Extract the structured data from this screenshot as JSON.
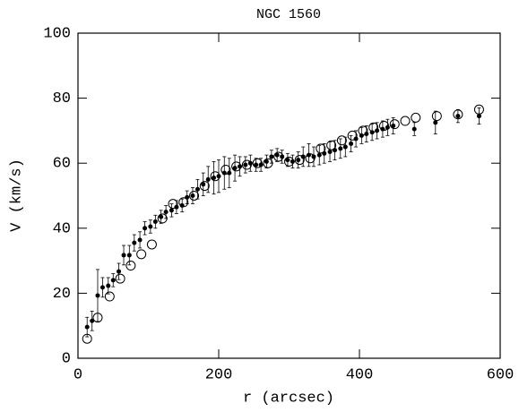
{
  "chart_data": {
    "type": "scatter",
    "title": "NGC 1560",
    "xlabel": "r (arcsec)",
    "ylabel": "V (km/s)",
    "xlim": [
      0,
      600
    ],
    "ylim": [
      0,
      100
    ],
    "xticks": [
      0,
      200,
      400,
      600
    ],
    "yticks": [
      0,
      20,
      40,
      60,
      80,
      100
    ],
    "series": [
      {
        "marker": "filled",
        "color": "#000000",
        "x": [
          13,
          20,
          28,
          35,
          43,
          50,
          58,
          65,
          73,
          80,
          88,
          95,
          103,
          110,
          118,
          125,
          133,
          140,
          148,
          155,
          163,
          170,
          178,
          185,
          193,
          200,
          208,
          215,
          223,
          230,
          238,
          245,
          253,
          260,
          268,
          275,
          283,
          290,
          298,
          305,
          313,
          320,
          328,
          335,
          343,
          350,
          358,
          365,
          373,
          380,
          388,
          395,
          403,
          410,
          418,
          425,
          433,
          440,
          448,
          478,
          508,
          540,
          570
        ],
        "values": [
          9.6,
          11.5,
          19.3,
          21.8,
          22.3,
          24,
          26.7,
          31.7,
          31.7,
          35.5,
          36.4,
          40,
          40.5,
          42,
          43.5,
          45,
          45.5,
          46.5,
          47,
          49.5,
          50,
          52,
          53.5,
          55,
          55.5,
          56,
          57,
          57,
          58.5,
          59,
          59.5,
          60,
          59.5,
          59.5,
          60.5,
          62,
          62.5,
          62,
          61,
          60.5,
          61,
          62,
          62.5,
          62,
          62.5,
          63,
          63.5,
          64,
          64.5,
          65,
          66,
          67.5,
          68.5,
          69,
          69.5,
          70,
          70.5,
          71,
          71.5,
          70.5,
          72.5,
          74.5,
          74.5
        ],
        "errors": [
          3,
          3,
          8,
          3,
          2.5,
          2,
          2.5,
          3,
          3,
          2.5,
          2.5,
          2,
          2,
          2,
          2,
          2,
          2,
          2,
          2,
          2,
          2.5,
          3,
          3.5,
          4,
          5,
          5,
          5,
          4.5,
          4,
          3,
          2.5,
          2.5,
          2,
          2,
          2,
          2,
          2,
          2,
          2,
          2,
          2.5,
          3,
          3.5,
          3,
          3,
          3,
          3,
          3,
          3,
          3,
          2.5,
          2.5,
          2.5,
          2.5,
          2.5,
          2.5,
          2.5,
          2.5,
          2.5,
          2,
          3.5,
          2,
          2.5
        ]
      },
      {
        "marker": "open",
        "color": "#000000",
        "x": [
          13,
          28,
          45,
          60,
          75,
          90,
          105,
          120,
          135,
          150,
          165,
          180,
          195,
          210,
          225,
          240,
          255,
          270,
          285,
          300,
          315,
          330,
          345,
          360,
          375,
          390,
          405,
          420,
          435,
          450,
          465,
          480,
          510,
          540,
          570
        ],
        "values": [
          6,
          12.5,
          19,
          24.5,
          28.5,
          32,
          35,
          43,
          47.5,
          48,
          50,
          53,
          56,
          58,
          59,
          59.5,
          60,
          60,
          62,
          60.5,
          61,
          61.5,
          64.5,
          65.5,
          67,
          68.5,
          70,
          71,
          71.5,
          72,
          73,
          74,
          74.5,
          75,
          76.5
        ]
      }
    ]
  }
}
